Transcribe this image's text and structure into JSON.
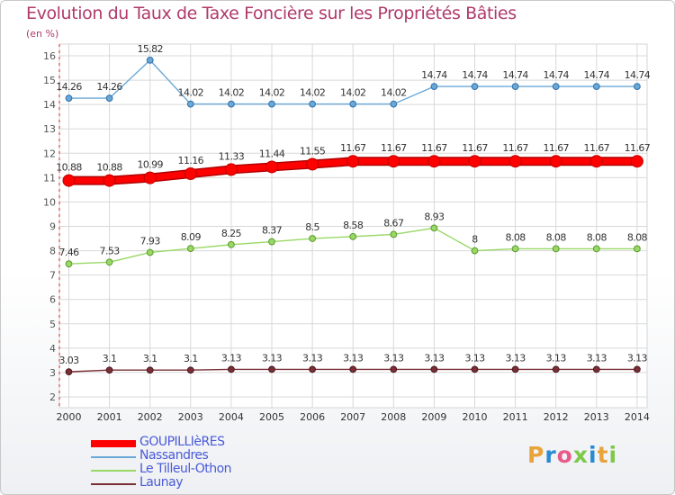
{
  "chart_data": {
    "type": "line",
    "title": "Evolution du Taux de Taxe Foncière sur les Propriétés Bâties",
    "ylabel": "(en %)",
    "xlabel": "",
    "ylim": [
      2,
      16
    ],
    "yticks": [
      "2",
      "3",
      "4",
      "5",
      "6",
      "7",
      "8",
      "9",
      "10",
      "11",
      "12",
      "13",
      "14",
      "15",
      "16"
    ],
    "grid": true,
    "legend_position": "bottom-left",
    "categories": [
      "2000",
      "2001",
      "2002",
      "2003",
      "2004",
      "2005",
      "2006",
      "2007",
      "2008",
      "2009",
      "2010",
      "2011",
      "2012",
      "2013",
      "2014"
    ],
    "series": [
      {
        "name": "GOUPILLIèRES",
        "color": "#ff0000",
        "values": [
          10.88,
          10.88,
          10.99,
          11.16,
          11.33,
          11.44,
          11.55,
          11.67,
          11.67,
          11.67,
          11.67,
          11.67,
          11.67,
          11.67,
          11.67
        ],
        "labels": [
          "10.88",
          "10.88",
          "10.99",
          "11.16",
          "11.33",
          "11.44",
          "11.55",
          "11.67",
          "11.67",
          "11.67",
          "11.67",
          "11.67",
          "11.67",
          "11.67",
          "11.67"
        ]
      },
      {
        "name": "Nassandres",
        "color": "#6aa8d8",
        "values": [
          14.26,
          14.26,
          15.82,
          14.02,
          14.02,
          14.02,
          14.02,
          14.02,
          14.02,
          14.74,
          14.74,
          14.74,
          14.74,
          14.74,
          14.74
        ],
        "labels": [
          "14.26",
          "14.26",
          "15.82",
          "14.02",
          "14.02",
          "14.02",
          "14.02",
          "14.02",
          "14.02",
          "14.74",
          "14.74",
          "14.74",
          "14.74",
          "14.74",
          "14.74"
        ]
      },
      {
        "name": "Le Tilleul-Othon",
        "color": "#99d866",
        "values": [
          7.46,
          7.53,
          7.93,
          8.09,
          8.25,
          8.37,
          8.5,
          8.58,
          8.67,
          8.93,
          8,
          8.08,
          8.08,
          8.08,
          8.08
        ],
        "labels": [
          "7.46",
          "7.53",
          "7.93",
          "8.09",
          "8.25",
          "8.37",
          "8.5",
          "8.58",
          "8.67",
          "8.93",
          "8",
          "8.08",
          "8.08",
          "8.08",
          "8.08"
        ]
      },
      {
        "name": "Launay",
        "color": "#7a2e36",
        "values": [
          3.03,
          3.1,
          3.1,
          3.1,
          3.13,
          3.13,
          3.13,
          3.13,
          3.13,
          3.13,
          3.13,
          3.13,
          3.13,
          3.13,
          3.13
        ],
        "labels": [
          "3.03",
          "3.1",
          "3.1",
          "3.1",
          "3.13",
          "3.13",
          "3.13",
          "3.13",
          "3.13",
          "3.13",
          "3.13",
          "3.13",
          "3.13",
          "3.13",
          "3.13"
        ]
      }
    ]
  },
  "logo": {
    "letters": [
      "P",
      "r",
      "o",
      "x",
      "i",
      "t",
      "i"
    ],
    "colors": [
      "#e8a33a",
      "#2a8ad0",
      "#e85a8a",
      "#7ec84a",
      "#2a8ad0",
      "#e8a33a",
      "#7ec84a"
    ]
  }
}
